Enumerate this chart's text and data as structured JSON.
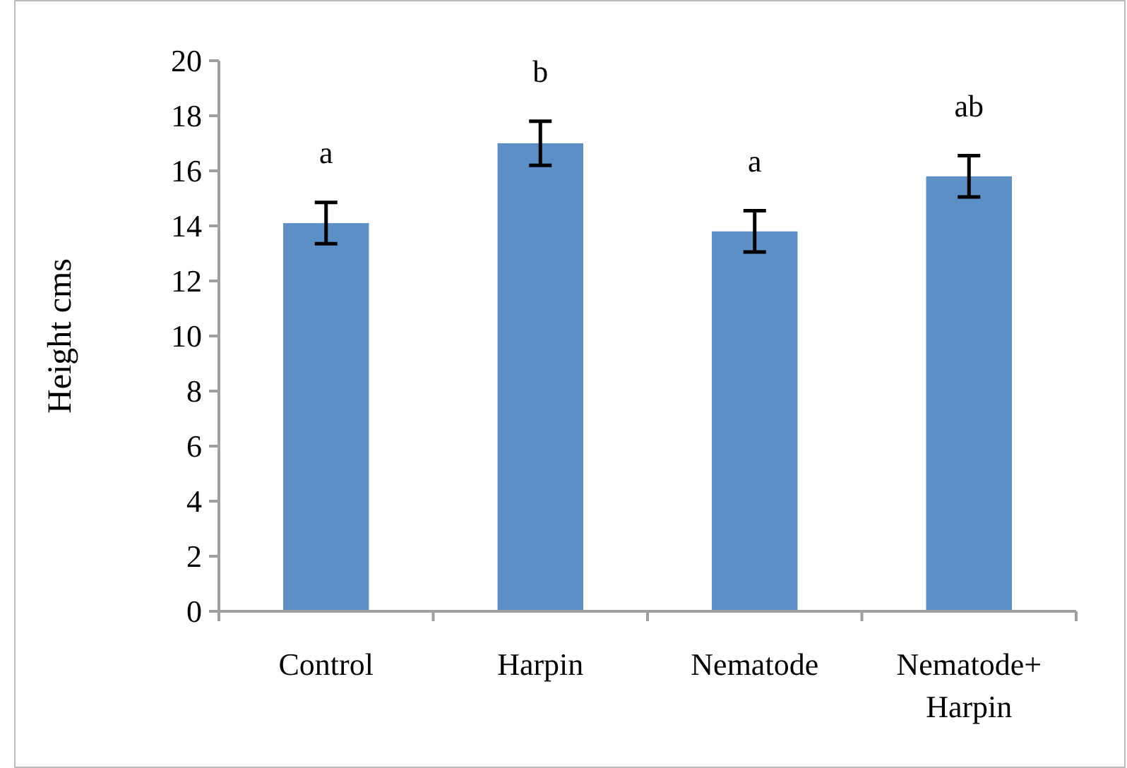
{
  "chart_data": {
    "type": "bar",
    "ylabel": "Height cms",
    "categories": [
      "Control",
      "Harpin",
      "Nematode",
      "Nematode+ Harpin"
    ],
    "values": [
      14.1,
      17.0,
      13.8,
      15.8
    ],
    "errors": [
      0.75,
      0.8,
      0.75,
      0.75
    ],
    "color": "#5b8fc6",
    "ylim": [
      0,
      20
    ],
    "yticks": [
      0,
      2,
      4,
      6,
      8,
      10,
      12,
      14,
      16,
      18,
      20
    ],
    "grid": false,
    "annotations": [
      "a",
      "b",
      "a",
      "ab"
    ]
  }
}
